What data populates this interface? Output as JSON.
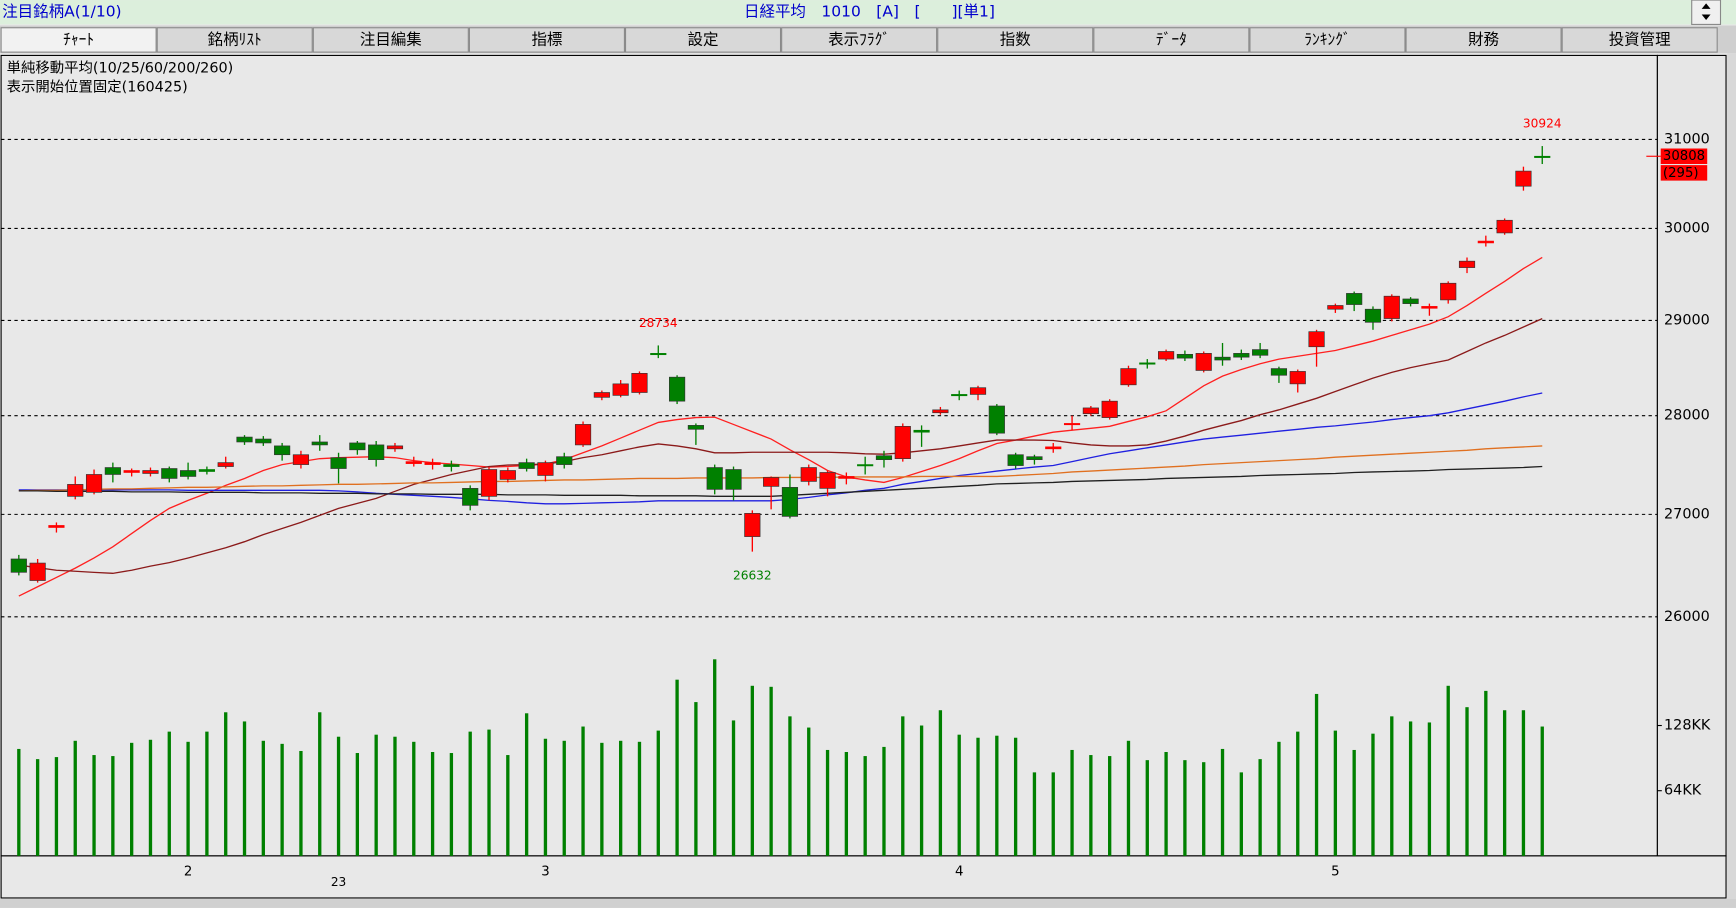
{
  "header": {
    "watchlist": "注目銘柄A(1/10)",
    "symbol_info": "日経平均　1010　[A]　[　　][単1]"
  },
  "tabs": [
    "ﾁｬｰﾄ",
    "銘柄ﾘｽﾄ",
    "注目編集",
    "指標",
    "設定",
    "表示ﾌﾗｸﾞ",
    "指数",
    "ﾃﾞｰﾀ",
    "ﾗﾝｷﾝｸﾞ",
    "財務",
    "投資管理"
  ],
  "chart_data": {
    "type": "candlestick",
    "notes": [
      "単純移動平均(10/25/60/200/260)",
      "表示開始位置固定(160425)"
    ],
    "categories": [
      null,
      null,
      null,
      null,
      null,
      null,
      null,
      null,
      null,
      "2",
      null,
      null,
      null,
      null,
      null,
      null,
      null,
      null,
      null,
      null,
      null,
      null,
      null,
      null,
      null,
      null,
      null,
      null,
      "3",
      null,
      null,
      null,
      null,
      null,
      null,
      null,
      null,
      null,
      null,
      null,
      null,
      null,
      null,
      null,
      null,
      null,
      null,
      null,
      null,
      null,
      "4",
      null,
      null,
      null,
      null,
      null,
      null,
      null,
      null,
      null,
      null,
      null,
      null,
      null,
      null,
      null,
      null,
      null,
      null,
      null,
      "5",
      null,
      null,
      null,
      null,
      null,
      null,
      null,
      null,
      null,
      null,
      null
    ],
    "day_labels": [
      null,
      null,
      null,
      null,
      null,
      null,
      null,
      null,
      null,
      null,
      null,
      null,
      null,
      null,
      null,
      null,
      null,
      "23",
      null,
      null,
      null,
      null,
      null,
      null,
      null,
      null,
      null,
      null,
      null,
      null,
      null,
      null,
      null,
      null,
      null,
      null,
      null,
      null,
      null,
      null,
      null,
      null,
      null,
      null,
      null,
      null,
      null,
      null,
      null,
      null,
      null,
      null,
      null,
      null,
      null,
      null,
      null,
      null,
      null,
      null,
      null,
      null,
      null,
      null,
      null,
      null,
      null,
      null,
      null,
      null,
      null,
      null,
      null,
      null,
      null,
      null,
      null,
      null,
      null,
      null,
      null,
      null
    ],
    "open": [
      26560,
      26350,
      26870,
      27180,
      27220,
      27470,
      27420,
      27410,
      27460,
      27440,
      27450,
      27480,
      27780,
      27760,
      27690,
      27500,
      27730,
      27570,
      27720,
      27700,
      27660,
      27510,
      27500,
      27500,
      27260,
      27180,
      27350,
      27520,
      27390,
      27580,
      27700,
      28190,
      28210,
      28240,
      28650,
      28400,
      27900,
      27470,
      27450,
      26780,
      27280,
      27270,
      27330,
      27260,
      27360,
      27500,
      27590,
      27560,
      27850,
      28030,
      28220,
      28220,
      28100,
      27600,
      27580,
      27660,
      27910,
      28020,
      27980,
      28320,
      28550,
      28590,
      28640,
      28470,
      28610,
      28650,
      28690,
      28490,
      28330,
      28720,
      29120,
      29290,
      29120,
      29020,
      29230,
      29130,
      29220,
      29570,
      29840,
      29950,
      30470,
      30808
    ],
    "high": [
      26600,
      26560,
      26920,
      27380,
      27450,
      27520,
      27460,
      27470,
      27480,
      27520,
      27480,
      27580,
      27800,
      27790,
      27720,
      27640,
      27800,
      27620,
      27740,
      27740,
      27720,
      27580,
      27560,
      27540,
      27290,
      27470,
      27470,
      27560,
      27540,
      27620,
      27940,
      28260,
      28370,
      28460,
      28734,
      28420,
      27920,
      27500,
      27480,
      27040,
      27380,
      27400,
      27500,
      27440,
      27420,
      27580,
      27640,
      27920,
      27900,
      28090,
      28260,
      28310,
      28120,
      27620,
      27600,
      27720,
      28000,
      28100,
      28170,
      28520,
      28590,
      28690,
      28680,
      28670,
      28760,
      28690,
      28760,
      28510,
      28480,
      28900,
      29180,
      29310,
      29150,
      29280,
      29250,
      29180,
      29420,
      29680,
      29920,
      30110,
      30690,
      30924
    ],
    "low": [
      26400,
      26330,
      26820,
      27150,
      27200,
      27320,
      27380,
      27380,
      27320,
      27350,
      27400,
      27460,
      27700,
      27690,
      27540,
      27460,
      27640,
      27310,
      27600,
      27480,
      27630,
      27480,
      27450,
      27430,
      27040,
      27140,
      27320,
      27430,
      27330,
      27460,
      27680,
      28160,
      28190,
      28220,
      28600,
      28120,
      27700,
      27200,
      27140,
      26632,
      27050,
      26960,
      27290,
      27180,
      27300,
      27400,
      27470,
      27530,
      27680,
      28010,
      28160,
      28160,
      27800,
      27460,
      27500,
      27620,
      27850,
      28000,
      27960,
      28300,
      28490,
      28570,
      28570,
      28450,
      28520,
      28580,
      28600,
      28340,
      28240,
      28510,
      29080,
      29100,
      28900,
      28990,
      29150,
      29050,
      29180,
      29510,
      29800,
      29930,
      30420,
      30720
    ],
    "close": [
      26430,
      26520,
      26890,
      27300,
      27400,
      27400,
      27440,
      27440,
      27360,
      27380,
      27430,
      27520,
      27730,
      27720,
      27600,
      27600,
      27700,
      27460,
      27650,
      27550,
      27690,
      27530,
      27520,
      27480,
      27090,
      27450,
      27440,
      27460,
      27520,
      27500,
      27910,
      28240,
      28330,
      28440,
      28650,
      28150,
      27860,
      27250,
      27250,
      27010,
      27370,
      26980,
      27470,
      27420,
      27380,
      27500,
      27550,
      27890,
      27830,
      28060,
      28220,
      28290,
      27820,
      27490,
      27550,
      27680,
      27920,
      28080,
      28150,
      28490,
      28550,
      28670,
      28600,
      28650,
      28580,
      28610,
      28630,
      28420,
      28460,
      28880,
      29160,
      29170,
      28980,
      29260,
      29180,
      29150,
      29400,
      29640,
      29860,
      30090,
      30640,
      30808
    ],
    "up_color": "#ff0000",
    "down_color": "#008000",
    "ylim": [
      25800,
      32000
    ],
    "yticks": [
      26000,
      27000,
      28000,
      29000,
      30000,
      31000
    ],
    "log_scale": true,
    "grid": true,
    "extreme_labels": [
      {
        "value": 30924,
        "color": "#ff0000"
      },
      {
        "value": 28734,
        "color": "#ff0000"
      },
      {
        "value": 26632,
        "color": "#008000"
      }
    ],
    "change": {
      "value": 295,
      "label": "(295)"
    },
    "moving_averages": [
      {
        "color": "#ff2020",
        "values": [
          26200,
          26290,
          26380,
          26470,
          26570,
          26680,
          26810,
          26940,
          27060,
          27140,
          27210,
          27290,
          27360,
          27440,
          27500,
          27530,
          27560,
          27570,
          27575,
          27580,
          27570,
          27540,
          27520,
          27505,
          27490,
          27475,
          27480,
          27490,
          27505,
          27550,
          27620,
          27690,
          27770,
          27850,
          27930,
          27960,
          27980,
          27985,
          27910,
          27835,
          27760,
          27650,
          27550,
          27440,
          27375,
          27345,
          27320,
          27370,
          27430,
          27490,
          27560,
          27640,
          27715,
          27750,
          27790,
          27830,
          27850,
          27870,
          27890,
          27940,
          27990,
          28050,
          28180,
          28310,
          28410,
          28480,
          28540,
          28590,
          28620,
          28650,
          28680,
          28730,
          28780,
          28840,
          28900,
          28960,
          29040,
          29160,
          29290,
          29420,
          29560,
          29680
        ]
      },
      {
        "color": "#8b1a1a",
        "values": [
          26500,
          26475,
          26450,
          26440,
          26430,
          26420,
          26450,
          26490,
          26525,
          26570,
          26620,
          26670,
          26730,
          26800,
          26860,
          26920,
          26990,
          27060,
          27110,
          27160,
          27230,
          27300,
          27350,
          27400,
          27440,
          27480,
          27495,
          27500,
          27505,
          27530,
          27570,
          27600,
          27640,
          27680,
          27710,
          27690,
          27660,
          27620,
          27620,
          27625,
          27625,
          27625,
          27625,
          27625,
          27620,
          27610,
          27605,
          27620,
          27640,
          27660,
          27690,
          27720,
          27750,
          27750,
          27750,
          27745,
          27720,
          27700,
          27690,
          27690,
          27700,
          27740,
          27790,
          27850,
          27900,
          27950,
          28010,
          28060,
          28120,
          28180,
          28250,
          28320,
          28390,
          28450,
          28500,
          28540,
          28580,
          28670,
          28760,
          28840,
          28930,
          29020
        ]
      },
      {
        "color": "#2020e0",
        "values": [
          27245,
          27245,
          27245,
          27245,
          27245,
          27245,
          27245,
          27245,
          27245,
          27240,
          27240,
          27240,
          27240,
          27240,
          27240,
          27240,
          27240,
          27235,
          27225,
          27210,
          27200,
          27190,
          27180,
          27170,
          27155,
          27140,
          27130,
          27115,
          27105,
          27105,
          27110,
          27115,
          27120,
          27125,
          27135,
          27135,
          27135,
          27135,
          27135,
          27135,
          27135,
          27150,
          27170,
          27195,
          27215,
          27240,
          27260,
          27300,
          27330,
          27360,
          27390,
          27410,
          27435,
          27455,
          27475,
          27490,
          27530,
          27570,
          27610,
          27640,
          27670,
          27700,
          27730,
          27760,
          27780,
          27800,
          27820,
          27840,
          27860,
          27880,
          27895,
          27915,
          27935,
          27960,
          27980,
          28000,
          28030,
          28070,
          28110,
          28150,
          28195,
          28235
        ]
      },
      {
        "color": "#e07020",
        "values": [
          27235,
          27240,
          27240,
          27245,
          27250,
          27255,
          27255,
          27260,
          27265,
          27270,
          27270,
          27275,
          27280,
          27285,
          27285,
          27290,
          27295,
          27300,
          27300,
          27305,
          27310,
          27315,
          27315,
          27320,
          27325,
          27330,
          27330,
          27335,
          27340,
          27345,
          27345,
          27350,
          27355,
          27360,
          27360,
          27360,
          27365,
          27365,
          27365,
          27365,
          27370,
          27370,
          27370,
          27370,
          27375,
          27375,
          27375,
          27375,
          27380,
          27380,
          27380,
          27380,
          27380,
          27390,
          27400,
          27410,
          27425,
          27435,
          27445,
          27455,
          27465,
          27475,
          27485,
          27500,
          27510,
          27520,
          27530,
          27540,
          27550,
          27560,
          27575,
          27585,
          27595,
          27605,
          27615,
          27625,
          27635,
          27645,
          27660,
          27670,
          27680,
          27690
        ]
      },
      {
        "color": "#202020",
        "values": [
          27235,
          27235,
          27230,
          27230,
          27230,
          27230,
          27225,
          27225,
          27225,
          27220,
          27220,
          27220,
          27220,
          27215,
          27215,
          27215,
          27210,
          27210,
          27210,
          27205,
          27205,
          27205,
          27200,
          27200,
          27200,
          27200,
          27195,
          27195,
          27195,
          27190,
          27190,
          27190,
          27190,
          27185,
          27185,
          27185,
          27185,
          27180,
          27180,
          27180,
          27180,
          27190,
          27200,
          27210,
          27220,
          27230,
          27240,
          27250,
          27260,
          27270,
          27280,
          27290,
          27305,
          27310,
          27315,
          27320,
          27330,
          27335,
          27340,
          27345,
          27350,
          27360,
          27365,
          27370,
          27375,
          27380,
          27390,
          27395,
          27400,
          27405,
          27410,
          27420,
          27425,
          27430,
          27435,
          27440,
          27450,
          27455,
          27460,
          27465,
          27470,
          27480
        ]
      }
    ],
    "volume": {
      "color": "#008000",
      "ylim": [
        0,
        200
      ],
      "yticks": [
        {
          "value": 64,
          "label": "64KK"
        },
        {
          "value": 128,
          "label": "128KK"
        }
      ],
      "values": [
        105,
        95,
        97,
        113,
        99,
        98,
        111,
        114,
        122,
        112,
        122,
        141,
        132,
        113,
        110,
        103,
        141,
        117,
        101,
        119,
        117,
        112,
        102,
        101,
        122,
        124,
        99,
        140,
        115,
        113,
        127,
        111,
        113,
        112,
        123,
        173,
        151,
        193,
        133,
        167,
        166,
        137,
        126,
        104,
        102,
        98,
        107,
        137,
        128,
        143,
        119,
        116,
        118,
        116,
        82,
        82,
        104,
        99,
        98,
        113,
        94,
        102,
        94,
        92,
        105,
        82,
        95,
        112,
        122,
        159,
        123,
        104,
        120,
        137,
        132,
        131,
        167,
        146,
        162,
        143,
        143,
        127
      ]
    }
  }
}
